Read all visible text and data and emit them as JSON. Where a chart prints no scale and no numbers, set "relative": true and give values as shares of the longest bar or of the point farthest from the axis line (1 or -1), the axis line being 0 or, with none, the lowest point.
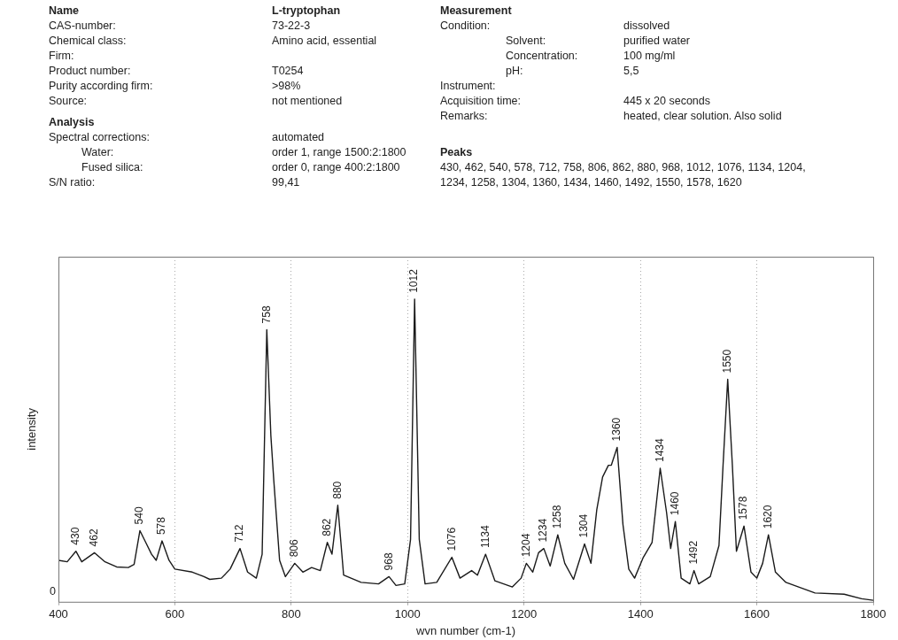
{
  "chart_data": {
    "type": "line",
    "xlabel": "wvn number (cm-1)",
    "ylabel": "intensity",
    "relative": true,
    "grid": "x",
    "legend": false,
    "marker": "none",
    "xlim": [
      400,
      1800
    ],
    "xticks": [
      400,
      600,
      800,
      1000,
      1200,
      1400,
      1600,
      1800
    ],
    "series": [
      {
        "color": "#1a1a1a",
        "x": [
          400,
          415,
          430,
          440,
          462,
          480,
          500,
          520,
          530,
          540,
          550,
          560,
          568,
          578,
          590,
          600,
          630,
          650,
          660,
          680,
          695,
          712,
          725,
          740,
          750,
          758,
          765,
          770,
          780,
          790,
          806,
          820,
          835,
          850,
          862,
          870,
          880,
          890,
          920,
          950,
          968,
          980,
          995,
          1005,
          1012,
          1020,
          1030,
          1050,
          1076,
          1090,
          1110,
          1120,
          1134,
          1150,
          1180,
          1195,
          1204,
          1215,
          1225,
          1234,
          1245,
          1258,
          1270,
          1285,
          1304,
          1315,
          1325,
          1335,
          1345,
          1350,
          1360,
          1370,
          1380,
          1390,
          1405,
          1420,
          1434,
          1445,
          1452,
          1460,
          1470,
          1485,
          1492,
          1500,
          1520,
          1535,
          1542,
          1550,
          1558,
          1565,
          1578,
          1590,
          1600,
          1610,
          1620,
          1632,
          1650,
          1700,
          1750,
          1780,
          1800
        ],
        "values": [
          0.137,
          0.132,
          0.167,
          0.132,
          0.162,
          0.132,
          0.115,
          0.113,
          0.123,
          0.235,
          0.196,
          0.157,
          0.137,
          0.201,
          0.137,
          0.108,
          0.098,
          0.083,
          0.074,
          0.078,
          0.108,
          0.176,
          0.098,
          0.078,
          0.157,
          0.899,
          0.549,
          0.402,
          0.137,
          0.083,
          0.127,
          0.098,
          0.113,
          0.103,
          0.196,
          0.157,
          0.319,
          0.088,
          0.064,
          0.059,
          0.083,
          0.054,
          0.059,
          0.206,
          1.0,
          0.206,
          0.059,
          0.064,
          0.147,
          0.078,
          0.103,
          0.088,
          0.157,
          0.069,
          0.049,
          0.078,
          0.127,
          0.098,
          0.162,
          0.176,
          0.118,
          0.221,
          0.127,
          0.074,
          0.191,
          0.127,
          0.304,
          0.412,
          0.451,
          0.451,
          0.51,
          0.255,
          0.108,
          0.078,
          0.147,
          0.196,
          0.441,
          0.294,
          0.176,
          0.265,
          0.078,
          0.059,
          0.103,
          0.059,
          0.083,
          0.186,
          0.451,
          0.735,
          0.451,
          0.167,
          0.25,
          0.098,
          0.078,
          0.127,
          0.221,
          0.098,
          0.064,
          0.029,
          0.025,
          0.01,
          0.005
        ]
      }
    ],
    "annotations": [
      "Name",
      "L-tryptophan",
      "CAS-number:",
      "73-22-3",
      "Chemical class:",
      "Amino acid, essential",
      "Firm:",
      "Product number:",
      "T0254",
      "Purity according firm:",
      ">98%",
      "Source:",
      "not mentioned",
      "Analysis",
      "Spectral corrections:",
      "automated",
      "Water:",
      "order 1, range 1500:2:1800",
      "Fused silica:",
      "order 0, range 400:2:1800",
      "S/N ratio:",
      "99,41",
      "Measurement",
      "Condition:",
      "dissolved",
      "Solvent:",
      "purified water",
      "Concentration:",
      "100 mg/ml",
      "pH:",
      "5,5",
      "Instrument:",
      "Acquisition time:",
      "445 x 20 seconds",
      "Remarks:",
      "heated, clear solution. Also solid",
      "Peaks",
      "430, 462, 540, 578, 712, 758, 806, 862, 880, 968, 1012, 1076, 1134, 1204,",
      "1234, 1258, 1304, 1360, 1434, 1460, 1492, 1550, 1578, 1620",
      "0",
      {
        "text": "430",
        "x": 430,
        "y": 0.167
      },
      {
        "text": "462",
        "x": 462,
        "y": 0.162
      },
      {
        "text": "540",
        "x": 540,
        "y": 0.235
      },
      {
        "text": "578",
        "x": 578,
        "y": 0.201
      },
      {
        "text": "712",
        "x": 712,
        "y": 0.176
      },
      {
        "text": "758",
        "x": 758,
        "y": 0.899
      },
      {
        "text": "806",
        "x": 806,
        "y": 0.127
      },
      {
        "text": "862",
        "x": 862,
        "y": 0.196
      },
      {
        "text": "880",
        "x": 880,
        "y": 0.319
      },
      {
        "text": "968",
        "x": 968,
        "y": 0.083
      },
      {
        "text": "1012",
        "x": 1012,
        "y": 1.0
      },
      {
        "text": "1076",
        "x": 1076,
        "y": 0.147
      },
      {
        "text": "1134",
        "x": 1134,
        "y": 0.157
      },
      {
        "text": "1204",
        "x": 1204,
        "y": 0.127
      },
      {
        "text": "1234",
        "x": 1234,
        "y": 0.176
      },
      {
        "text": "1258",
        "x": 1258,
        "y": 0.221
      },
      {
        "text": "1304",
        "x": 1304,
        "y": 0.191
      },
      {
        "text": "1360",
        "x": 1360,
        "y": 0.51
      },
      {
        "text": "1434",
        "x": 1434,
        "y": 0.441
      },
      {
        "text": "1460",
        "x": 1460,
        "y": 0.265
      },
      {
        "text": "1492",
        "x": 1492,
        "y": 0.103
      },
      {
        "text": "1550",
        "x": 1550,
        "y": 0.735
      },
      {
        "text": "1578",
        "x": 1578,
        "y": 0.25
      },
      {
        "text": "1620",
        "x": 1620,
        "y": 0.221
      }
    ]
  }
}
